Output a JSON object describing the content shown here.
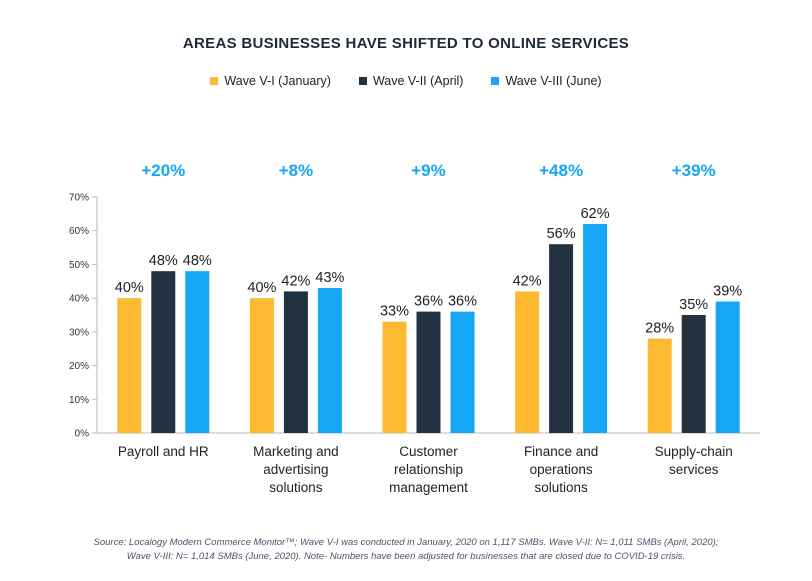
{
  "chart_data": {
    "type": "bar",
    "title": "AREAS BUSINESSES HAVE SHIFTED TO ONLINE SERVICES",
    "categories": [
      [
        "Payroll and HR"
      ],
      [
        "Marketing and",
        "advertising",
        "solutions"
      ],
      [
        "Customer",
        "relationship",
        "management"
      ],
      [
        "Finance and",
        "operations",
        "solutions"
      ],
      [
        "Supply-chain",
        "services"
      ]
    ],
    "series": [
      {
        "name": "Wave V-I (January)",
        "color": "#FDB92F",
        "values": [
          40,
          40,
          33,
          42,
          28
        ]
      },
      {
        "name": "Wave V-II (April)",
        "color": "#233240",
        "values": [
          48,
          42,
          36,
          56,
          35
        ]
      },
      {
        "name": "Wave V-III (June)",
        "color": "#15A6F4",
        "values": [
          48,
          43,
          36,
          62,
          39
        ]
      }
    ],
    "change_labels": [
      "+20%",
      "+8%",
      "+9%",
      "+48%",
      "+39%"
    ],
    "change_color": "#15A6F4",
    "yticks": [
      "0%",
      "10%",
      "20%",
      "30%",
      "40%",
      "50%",
      "60%",
      "70%"
    ],
    "ylim": [
      0,
      70
    ],
    "value_suffix": "%",
    "legend_position": "top-center",
    "grid": false
  },
  "source_lines": [
    "Source: Localogy Modern Commerce Monitor™;  Wave V-I  was conducted in January, 2020 on 1,117 SMBs. Wave V-II: N= 1,011 SMBs (April, 2020);",
    "Wave V-III: N= 1,014 SMBs (June, 2020). Note- Numbers have been adjusted for businesses that are closed due to COVID-19 crisis."
  ]
}
